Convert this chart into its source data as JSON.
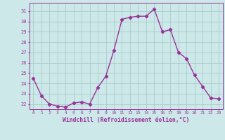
{
  "x": [
    0,
    1,
    2,
    3,
    4,
    5,
    6,
    7,
    8,
    9,
    10,
    11,
    12,
    13,
    14,
    15,
    16,
    17,
    18,
    19,
    20,
    21,
    22,
    23
  ],
  "y": [
    24.5,
    22.8,
    22.0,
    21.8,
    21.7,
    22.1,
    22.2,
    22.0,
    23.6,
    24.7,
    27.2,
    30.2,
    30.4,
    30.5,
    30.5,
    31.2,
    29.0,
    29.2,
    27.0,
    26.4,
    24.8,
    23.7,
    22.6,
    22.5
  ],
  "line_color": "#993399",
  "marker": "D",
  "marker_size": 2.2,
  "line_width": 1.0,
  "bg_color": "#cce8e8",
  "grid_color": "#aacccc",
  "xlabel": "Windchill (Refroidissement éolien,°C)",
  "xlabel_color": "#993399",
  "tick_color": "#993399",
  "ylim": [
    21.5,
    31.8
  ],
  "yticks": [
    22,
    23,
    24,
    25,
    26,
    27,
    28,
    29,
    30,
    31
  ],
  "xticks": [
    0,
    1,
    2,
    3,
    4,
    5,
    6,
    7,
    8,
    9,
    10,
    11,
    12,
    13,
    14,
    15,
    16,
    17,
    18,
    19,
    20,
    21,
    22,
    23
  ]
}
